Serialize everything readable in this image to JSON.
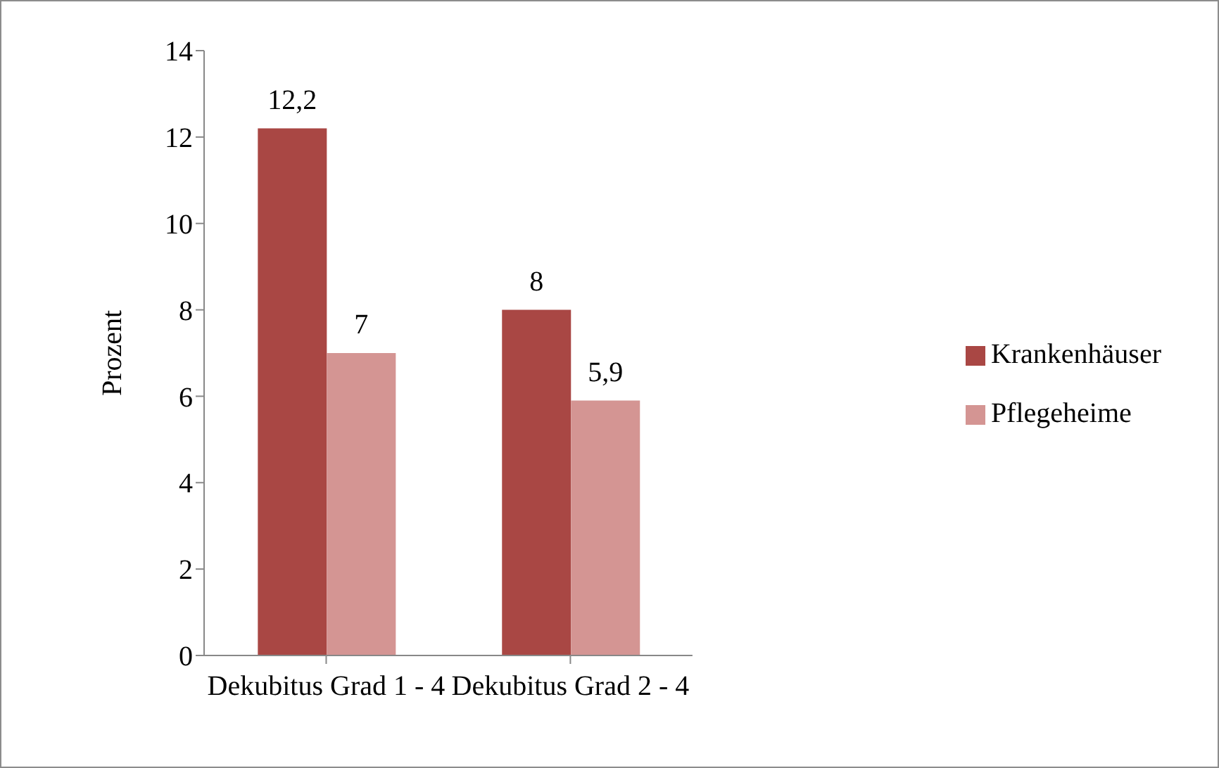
{
  "chart_data": {
    "type": "bar",
    "ylabel": "Prozent",
    "categories": [
      "Dekubitus Grad 1 - 4",
      "Dekubitus Grad 2 - 4"
    ],
    "series": [
      {
        "name": "Krankenhäuser",
        "color": "#a94744",
        "values": [
          12.2,
          8
        ],
        "value_labels": [
          "12,2",
          "8"
        ]
      },
      {
        "name": "Pflegeheime",
        "color": "#d49593",
        "values": [
          7,
          5.9
        ],
        "value_labels": [
          "7",
          "5,9"
        ]
      }
    ],
    "ylim": [
      0,
      14
    ],
    "yticks": [
      0,
      2,
      4,
      6,
      8,
      10,
      12,
      14
    ],
    "grid": false,
    "legend": "right"
  }
}
